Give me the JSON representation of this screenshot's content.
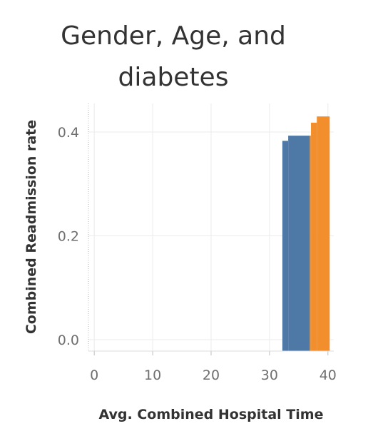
{
  "chart_data": {
    "type": "bar",
    "title_line_1": "Gender, Age, and",
    "title_line_2": "diabetes",
    "xlabel": "Avg. Combined Hospital Time",
    "ylabel": "Combined Readmission rate",
    "xlim": [
      -1,
      41
    ],
    "ylim": [
      -0.022,
      0.455
    ],
    "x_ticks": [
      0,
      10,
      20,
      30,
      40
    ],
    "x_tick_labels": [
      "0",
      "10",
      "20",
      "30",
      "40"
    ],
    "y_ticks": [
      0.0,
      0.2,
      0.4
    ],
    "y_tick_labels": [
      "0.0",
      "0.2",
      "0.4"
    ],
    "grid": true,
    "legend": "none",
    "series": [
      {
        "color": "#4e79a7",
        "steps": [
          {
            "x_start": 32.2,
            "x_end": 33.2,
            "y": 0.383
          },
          {
            "x_start": 33.2,
            "x_end": 36.9,
            "y": 0.393
          }
        ]
      },
      {
        "color": "#f28e2b",
        "steps": [
          {
            "x_start": 36.9,
            "x_end": 37.1,
            "y": 0.393
          },
          {
            "x_start": 37.1,
            "x_end": 38.1,
            "y": 0.418
          },
          {
            "x_start": 38.1,
            "x_end": 40.3,
            "y": 0.43
          }
        ]
      }
    ]
  }
}
